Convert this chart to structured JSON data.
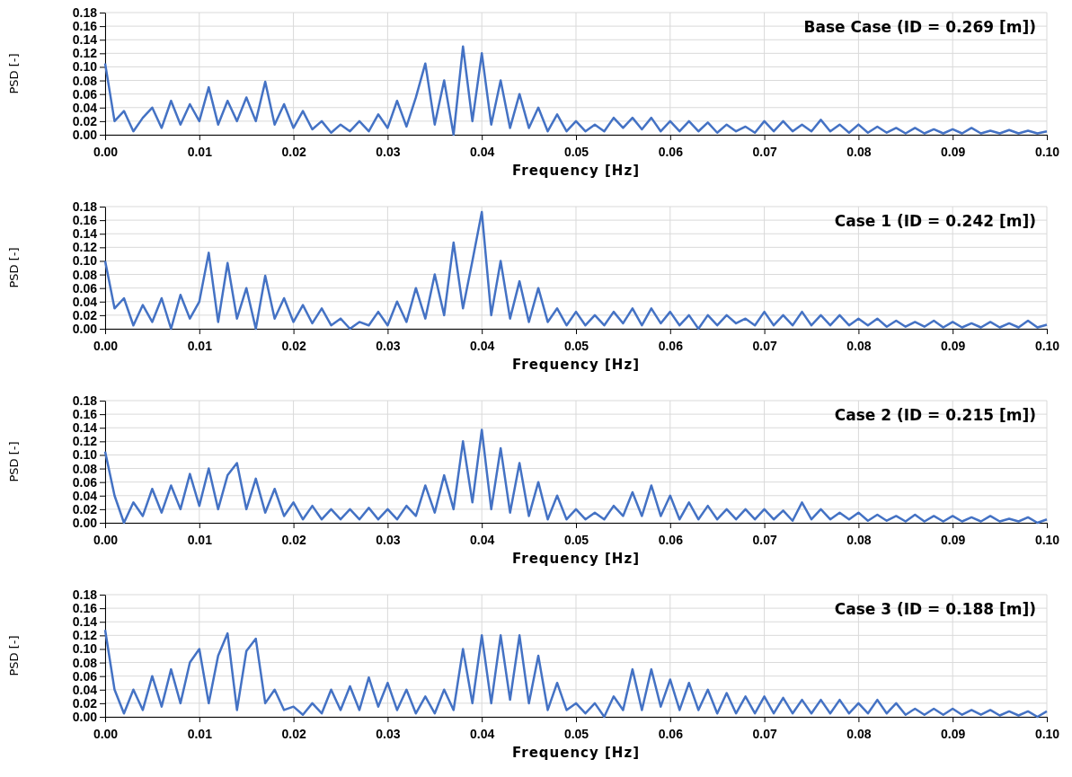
{
  "chart_data": [
    {
      "type": "line",
      "title": "Base Case (ID = 0.269 [m])",
      "xlabel": "Frequency [Hz]",
      "ylabel": "PSD [-]",
      "grid": true,
      "xlim": [
        0,
        0.1
      ],
      "ylim": [
        0,
        0.18
      ],
      "xticks": [
        {
          "value": 0,
          "label": "0.00"
        },
        {
          "value": 0.01,
          "label": "0.01"
        },
        {
          "value": 0.02,
          "label": "0.02"
        },
        {
          "value": 0.03,
          "label": "0.03"
        },
        {
          "value": 0.04,
          "label": "0.04"
        },
        {
          "value": 0.05,
          "label": "0.05"
        },
        {
          "value": 0.06,
          "label": "0.06"
        },
        {
          "value": 0.07,
          "label": "0.07"
        },
        {
          "value": 0.08,
          "label": "0.08"
        },
        {
          "value": 0.09,
          "label": "0.09"
        },
        {
          "value": 0.1,
          "label": "0.10"
        }
      ],
      "yticks": [
        {
          "value": 0,
          "label": "0.00"
        },
        {
          "value": 0.02,
          "label": "0.02"
        },
        {
          "value": 0.04,
          "label": "0.04"
        },
        {
          "value": 0.06,
          "label": "0.06"
        },
        {
          "value": 0.08,
          "label": "0.08"
        },
        {
          "value": 0.1,
          "label": "0.10"
        },
        {
          "value": 0.12,
          "label": "0.12"
        },
        {
          "value": 0.14,
          "label": "0.14"
        },
        {
          "value": 0.16,
          "label": "0.16"
        },
        {
          "value": 0.18,
          "label": "0.18"
        }
      ],
      "x": [
        0,
        0.001,
        0.002,
        0.003,
        0.004,
        0.005,
        0.006,
        0.007,
        0.008,
        0.009,
        0.01,
        0.011,
        0.012,
        0.013,
        0.014,
        0.015,
        0.016,
        0.017,
        0.018,
        0.019,
        0.02,
        0.021,
        0.022,
        0.023,
        0.024,
        0.025,
        0.026,
        0.027,
        0.028,
        0.029,
        0.03,
        0.031,
        0.032,
        0.033,
        0.034,
        0.035,
        0.036,
        0.037,
        0.038,
        0.039,
        0.04,
        0.041,
        0.042,
        0.043,
        0.044,
        0.045,
        0.046,
        0.047,
        0.048,
        0.049,
        0.05,
        0.051,
        0.052,
        0.053,
        0.054,
        0.055,
        0.056,
        0.057,
        0.058,
        0.059,
        0.06,
        0.061,
        0.062,
        0.063,
        0.064,
        0.065,
        0.066,
        0.067,
        0.068,
        0.069,
        0.07,
        0.071,
        0.072,
        0.073,
        0.074,
        0.075,
        0.076,
        0.077,
        0.078,
        0.079,
        0.08,
        0.081,
        0.082,
        0.083,
        0.084,
        0.085,
        0.086,
        0.087,
        0.088,
        0.089,
        0.09,
        0.091,
        0.092,
        0.093,
        0.094,
        0.095,
        0.096,
        0.097,
        0.098,
        0.099,
        0.1
      ],
      "series": [
        {
          "color": "#4472c4",
          "values": [
            0.105,
            0.02,
            0.035,
            0.005,
            0.025,
            0.04,
            0.01,
            0.05,
            0.015,
            0.045,
            0.02,
            0.07,
            0.015,
            0.05,
            0.02,
            0.055,
            0.02,
            0.078,
            0.015,
            0.045,
            0.01,
            0.035,
            0.008,
            0.02,
            0.003,
            0.015,
            0.005,
            0.02,
            0.005,
            0.03,
            0.01,
            0.05,
            0.012,
            0.055,
            0.105,
            0.015,
            0.08,
            0.0,
            0.13,
            0.02,
            0.12,
            0.015,
            0.08,
            0.01,
            0.06,
            0.01,
            0.04,
            0.005,
            0.03,
            0.005,
            0.02,
            0.005,
            0.015,
            0.005,
            0.025,
            0.01,
            0.025,
            0.008,
            0.025,
            0.005,
            0.02,
            0.005,
            0.02,
            0.005,
            0.018,
            0.003,
            0.015,
            0.005,
            0.012,
            0.003,
            0.02,
            0.005,
            0.02,
            0.005,
            0.015,
            0.005,
            0.022,
            0.005,
            0.015,
            0.003,
            0.015,
            0.003,
            0.012,
            0.003,
            0.01,
            0.002,
            0.01,
            0.002,
            0.008,
            0.002,
            0.008,
            0.002,
            0.01,
            0.002,
            0.006,
            0.002,
            0.007,
            0.002,
            0.006,
            0.002,
            0.005
          ]
        }
      ]
    },
    {
      "type": "line",
      "title": "Case 1 (ID = 0.242 [m])",
      "xlabel": "Frequency [Hz]",
      "ylabel": "PSD [-]",
      "grid": true,
      "xlim": [
        0,
        0.1
      ],
      "ylim": [
        0,
        0.18
      ],
      "xticks": [
        {
          "value": 0,
          "label": "0.00"
        },
        {
          "value": 0.01,
          "label": "0.01"
        },
        {
          "value": 0.02,
          "label": "0.02"
        },
        {
          "value": 0.03,
          "label": "0.03"
        },
        {
          "value": 0.04,
          "label": "0.04"
        },
        {
          "value": 0.05,
          "label": "0.05"
        },
        {
          "value": 0.06,
          "label": "0.06"
        },
        {
          "value": 0.07,
          "label": "0.07"
        },
        {
          "value": 0.08,
          "label": "0.08"
        },
        {
          "value": 0.09,
          "label": "0.09"
        },
        {
          "value": 0.1,
          "label": "0.10"
        }
      ],
      "yticks": [
        {
          "value": 0,
          "label": "0.00"
        },
        {
          "value": 0.02,
          "label": "0.02"
        },
        {
          "value": 0.04,
          "label": "0.04"
        },
        {
          "value": 0.06,
          "label": "0.06"
        },
        {
          "value": 0.08,
          "label": "0.08"
        },
        {
          "value": 0.1,
          "label": "0.10"
        },
        {
          "value": 0.12,
          "label": "0.12"
        },
        {
          "value": 0.14,
          "label": "0.14"
        },
        {
          "value": 0.16,
          "label": "0.16"
        },
        {
          "value": 0.18,
          "label": "0.18"
        }
      ],
      "x": [
        0,
        0.001,
        0.002,
        0.003,
        0.004,
        0.005,
        0.006,
        0.007,
        0.008,
        0.009,
        0.01,
        0.011,
        0.012,
        0.013,
        0.014,
        0.015,
        0.016,
        0.017,
        0.018,
        0.019,
        0.02,
        0.021,
        0.022,
        0.023,
        0.024,
        0.025,
        0.026,
        0.027,
        0.028,
        0.029,
        0.03,
        0.031,
        0.032,
        0.033,
        0.034,
        0.035,
        0.036,
        0.037,
        0.038,
        0.039,
        0.04,
        0.041,
        0.042,
        0.043,
        0.044,
        0.045,
        0.046,
        0.047,
        0.048,
        0.049,
        0.05,
        0.051,
        0.052,
        0.053,
        0.054,
        0.055,
        0.056,
        0.057,
        0.058,
        0.059,
        0.06,
        0.061,
        0.062,
        0.063,
        0.064,
        0.065,
        0.066,
        0.067,
        0.068,
        0.069,
        0.07,
        0.071,
        0.072,
        0.073,
        0.074,
        0.075,
        0.076,
        0.077,
        0.078,
        0.079,
        0.08,
        0.081,
        0.082,
        0.083,
        0.084,
        0.085,
        0.086,
        0.087,
        0.088,
        0.089,
        0.09,
        0.091,
        0.092,
        0.093,
        0.094,
        0.095,
        0.096,
        0.097,
        0.098,
        0.099,
        0.1
      ],
      "series": [
        {
          "color": "#4472c4",
          "values": [
            0.1,
            0.03,
            0.045,
            0.005,
            0.035,
            0.01,
            0.045,
            0.0,
            0.05,
            0.015,
            0.04,
            0.112,
            0.01,
            0.097,
            0.015,
            0.06,
            0.0,
            0.078,
            0.015,
            0.045,
            0.01,
            0.035,
            0.008,
            0.03,
            0.005,
            0.015,
            0.0,
            0.01,
            0.005,
            0.025,
            0.005,
            0.04,
            0.01,
            0.06,
            0.015,
            0.08,
            0.02,
            0.127,
            0.03,
            0.1,
            0.172,
            0.02,
            0.1,
            0.015,
            0.07,
            0.01,
            0.06,
            0.01,
            0.03,
            0.005,
            0.025,
            0.005,
            0.02,
            0.005,
            0.025,
            0.008,
            0.03,
            0.005,
            0.03,
            0.008,
            0.025,
            0.005,
            0.02,
            0.0,
            0.02,
            0.005,
            0.02,
            0.008,
            0.015,
            0.005,
            0.025,
            0.005,
            0.02,
            0.005,
            0.025,
            0.005,
            0.02,
            0.005,
            0.02,
            0.005,
            0.015,
            0.005,
            0.015,
            0.003,
            0.012,
            0.003,
            0.01,
            0.003,
            0.012,
            0.002,
            0.01,
            0.002,
            0.008,
            0.002,
            0.01,
            0.002,
            0.008,
            0.002,
            0.012,
            0.002,
            0.006
          ]
        }
      ]
    },
    {
      "type": "line",
      "title": "Case 2 (ID = 0.215 [m])",
      "xlabel": "Frequency [Hz]",
      "ylabel": "PSD [-]",
      "grid": true,
      "xlim": [
        0,
        0.1
      ],
      "ylim": [
        0,
        0.18
      ],
      "xticks": [
        {
          "value": 0,
          "label": "0.00"
        },
        {
          "value": 0.01,
          "label": "0.01"
        },
        {
          "value": 0.02,
          "label": "0.02"
        },
        {
          "value": 0.03,
          "label": "0.03"
        },
        {
          "value": 0.04,
          "label": "0.04"
        },
        {
          "value": 0.05,
          "label": "0.05"
        },
        {
          "value": 0.06,
          "label": "0.06"
        },
        {
          "value": 0.07,
          "label": "0.07"
        },
        {
          "value": 0.08,
          "label": "0.08"
        },
        {
          "value": 0.09,
          "label": "0.09"
        },
        {
          "value": 0.1,
          "label": "0.10"
        }
      ],
      "yticks": [
        {
          "value": 0,
          "label": "0.00"
        },
        {
          "value": 0.02,
          "label": "0.02"
        },
        {
          "value": 0.04,
          "label": "0.04"
        },
        {
          "value": 0.06,
          "label": "0.06"
        },
        {
          "value": 0.08,
          "label": "0.08"
        },
        {
          "value": 0.1,
          "label": "0.10"
        },
        {
          "value": 0.12,
          "label": "0.12"
        },
        {
          "value": 0.14,
          "label": "0.14"
        },
        {
          "value": 0.16,
          "label": "0.16"
        },
        {
          "value": 0.18,
          "label": "0.18"
        }
      ],
      "x": [
        0,
        0.001,
        0.002,
        0.003,
        0.004,
        0.005,
        0.006,
        0.007,
        0.008,
        0.009,
        0.01,
        0.011,
        0.012,
        0.013,
        0.014,
        0.015,
        0.016,
        0.017,
        0.018,
        0.019,
        0.02,
        0.021,
        0.022,
        0.023,
        0.024,
        0.025,
        0.026,
        0.027,
        0.028,
        0.029,
        0.03,
        0.031,
        0.032,
        0.033,
        0.034,
        0.035,
        0.036,
        0.037,
        0.038,
        0.039,
        0.04,
        0.041,
        0.042,
        0.043,
        0.044,
        0.045,
        0.046,
        0.047,
        0.048,
        0.049,
        0.05,
        0.051,
        0.052,
        0.053,
        0.054,
        0.055,
        0.056,
        0.057,
        0.058,
        0.059,
        0.06,
        0.061,
        0.062,
        0.063,
        0.064,
        0.065,
        0.066,
        0.067,
        0.068,
        0.069,
        0.07,
        0.071,
        0.072,
        0.073,
        0.074,
        0.075,
        0.076,
        0.077,
        0.078,
        0.079,
        0.08,
        0.081,
        0.082,
        0.083,
        0.084,
        0.085,
        0.086,
        0.087,
        0.088,
        0.089,
        0.09,
        0.091,
        0.092,
        0.093,
        0.094,
        0.095,
        0.096,
        0.097,
        0.098,
        0.099,
        0.1
      ],
      "series": [
        {
          "color": "#4472c4",
          "values": [
            0.105,
            0.04,
            0.0,
            0.03,
            0.01,
            0.05,
            0.015,
            0.055,
            0.02,
            0.072,
            0.025,
            0.08,
            0.02,
            0.07,
            0.088,
            0.02,
            0.065,
            0.015,
            0.05,
            0.01,
            0.03,
            0.005,
            0.025,
            0.005,
            0.02,
            0.005,
            0.02,
            0.005,
            0.022,
            0.005,
            0.02,
            0.005,
            0.025,
            0.01,
            0.055,
            0.015,
            0.07,
            0.02,
            0.12,
            0.03,
            0.137,
            0.02,
            0.11,
            0.015,
            0.088,
            0.01,
            0.06,
            0.005,
            0.04,
            0.005,
            0.02,
            0.005,
            0.015,
            0.005,
            0.025,
            0.01,
            0.045,
            0.01,
            0.055,
            0.01,
            0.04,
            0.005,
            0.03,
            0.005,
            0.025,
            0.005,
            0.02,
            0.005,
            0.02,
            0.005,
            0.02,
            0.005,
            0.018,
            0.003,
            0.03,
            0.005,
            0.02,
            0.005,
            0.015,
            0.005,
            0.015,
            0.003,
            0.012,
            0.003,
            0.01,
            0.002,
            0.012,
            0.002,
            0.01,
            0.002,
            0.01,
            0.002,
            0.008,
            0.002,
            0.01,
            0.002,
            0.006,
            0.002,
            0.008,
            0.0,
            0.005
          ]
        }
      ]
    },
    {
      "type": "line",
      "title": "Case 3 (ID = 0.188 [m])",
      "xlabel": "Frequency [Hz]",
      "ylabel": "PSD [-]",
      "grid": true,
      "xlim": [
        0,
        0.1
      ],
      "ylim": [
        0,
        0.18
      ],
      "xticks": [
        {
          "value": 0,
          "label": "0.00"
        },
        {
          "value": 0.01,
          "label": "0.01"
        },
        {
          "value": 0.02,
          "label": "0.02"
        },
        {
          "value": 0.03,
          "label": "0.03"
        },
        {
          "value": 0.04,
          "label": "0.04"
        },
        {
          "value": 0.05,
          "label": "0.05"
        },
        {
          "value": 0.06,
          "label": "0.06"
        },
        {
          "value": 0.07,
          "label": "0.07"
        },
        {
          "value": 0.08,
          "label": "0.08"
        },
        {
          "value": 0.09,
          "label": "0.09"
        },
        {
          "value": 0.1,
          "label": "0.10"
        }
      ],
      "yticks": [
        {
          "value": 0,
          "label": "0.00"
        },
        {
          "value": 0.02,
          "label": "0.02"
        },
        {
          "value": 0.04,
          "label": "0.04"
        },
        {
          "value": 0.06,
          "label": "0.06"
        },
        {
          "value": 0.08,
          "label": "0.08"
        },
        {
          "value": 0.1,
          "label": "0.10"
        },
        {
          "value": 0.12,
          "label": "0.12"
        },
        {
          "value": 0.14,
          "label": "0.14"
        },
        {
          "value": 0.16,
          "label": "0.16"
        },
        {
          "value": 0.18,
          "label": "0.18"
        }
      ],
      "x": [
        0,
        0.001,
        0.002,
        0.003,
        0.004,
        0.005,
        0.006,
        0.007,
        0.008,
        0.009,
        0.01,
        0.011,
        0.012,
        0.013,
        0.014,
        0.015,
        0.016,
        0.017,
        0.018,
        0.019,
        0.02,
        0.021,
        0.022,
        0.023,
        0.024,
        0.025,
        0.026,
        0.027,
        0.028,
        0.029,
        0.03,
        0.031,
        0.032,
        0.033,
        0.034,
        0.035,
        0.036,
        0.037,
        0.038,
        0.039,
        0.04,
        0.041,
        0.042,
        0.043,
        0.044,
        0.045,
        0.046,
        0.047,
        0.048,
        0.049,
        0.05,
        0.051,
        0.052,
        0.053,
        0.054,
        0.055,
        0.056,
        0.057,
        0.058,
        0.059,
        0.06,
        0.061,
        0.062,
        0.063,
        0.064,
        0.065,
        0.066,
        0.067,
        0.068,
        0.069,
        0.07,
        0.071,
        0.072,
        0.073,
        0.074,
        0.075,
        0.076,
        0.077,
        0.078,
        0.079,
        0.08,
        0.081,
        0.082,
        0.083,
        0.084,
        0.085,
        0.086,
        0.087,
        0.088,
        0.089,
        0.09,
        0.091,
        0.092,
        0.093,
        0.094,
        0.095,
        0.096,
        0.097,
        0.098,
        0.099,
        0.1
      ],
      "series": [
        {
          "color": "#4472c4",
          "values": [
            0.128,
            0.04,
            0.005,
            0.04,
            0.01,
            0.06,
            0.015,
            0.07,
            0.02,
            0.08,
            0.1,
            0.02,
            0.09,
            0.123,
            0.01,
            0.097,
            0.115,
            0.02,
            0.04,
            0.01,
            0.015,
            0.003,
            0.02,
            0.005,
            0.04,
            0.01,
            0.045,
            0.01,
            0.058,
            0.015,
            0.05,
            0.01,
            0.04,
            0.005,
            0.03,
            0.005,
            0.04,
            0.01,
            0.1,
            0.02,
            0.12,
            0.02,
            0.12,
            0.025,
            0.12,
            0.02,
            0.09,
            0.01,
            0.05,
            0.01,
            0.02,
            0.005,
            0.02,
            0.0,
            0.03,
            0.01,
            0.07,
            0.01,
            0.07,
            0.015,
            0.055,
            0.01,
            0.05,
            0.01,
            0.04,
            0.005,
            0.035,
            0.005,
            0.03,
            0.005,
            0.03,
            0.005,
            0.028,
            0.005,
            0.025,
            0.005,
            0.025,
            0.005,
            0.025,
            0.005,
            0.02,
            0.005,
            0.025,
            0.005,
            0.02,
            0.003,
            0.012,
            0.003,
            0.012,
            0.003,
            0.012,
            0.003,
            0.01,
            0.003,
            0.01,
            0.002,
            0.008,
            0.002,
            0.008,
            0.0,
            0.008
          ]
        }
      ]
    }
  ]
}
